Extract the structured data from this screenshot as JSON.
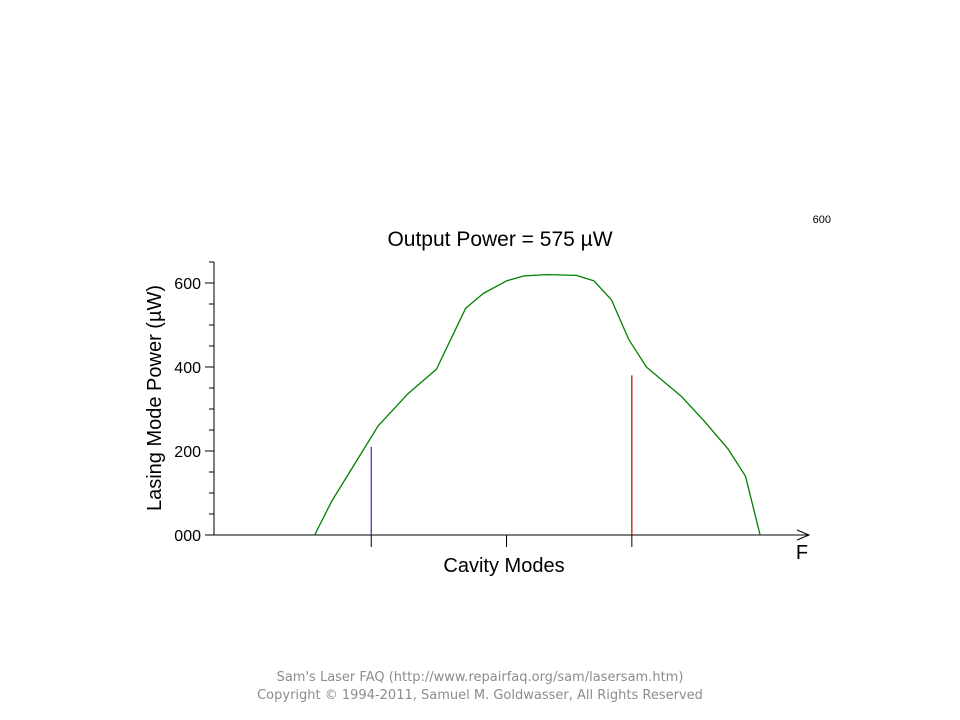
{
  "chart_data": {
    "type": "line",
    "title": "Output Power = 575 µW",
    "corner_label": "600",
    "ylabel": "Lasing Mode Power (µW)",
    "xlabel": "Cavity Modes",
    "x_axis_end_label": "F",
    "ylim": [
      0,
      650
    ],
    "xlim": [
      0,
      100
    ],
    "y_ticks": [
      "000",
      "200",
      "400",
      "600"
    ],
    "y_tick_values": [
      0,
      200,
      400,
      600
    ],
    "grid": false,
    "series": [
      {
        "color": "#008000",
        "x": [
          17.1,
          20,
          24,
          28,
          33,
          38,
          43,
          46,
          50,
          53,
          57,
          62,
          65,
          68,
          71,
          74,
          77,
          80,
          84,
          88,
          91,
          93.5
        ],
        "y": [
          0,
          80,
          170,
          260,
          335,
          395,
          540,
          575,
          605,
          617,
          620,
          618,
          605,
          560,
          465,
          400,
          365,
          330,
          270,
          205,
          140,
          0
        ]
      }
    ],
    "markers": [
      {
        "x": 26.8,
        "y": 210,
        "color": "#2a2ad0"
      },
      {
        "x": 71.5,
        "y": 380,
        "color": "#c00000"
      }
    ]
  },
  "footer": {
    "line1": "Sam's Laser FAQ (http://www.repairfaq.org/sam/lasersam.htm)",
    "line2": "Copyright © 1994-2011, Samuel M. Goldwasser, All Rights Reserved"
  }
}
